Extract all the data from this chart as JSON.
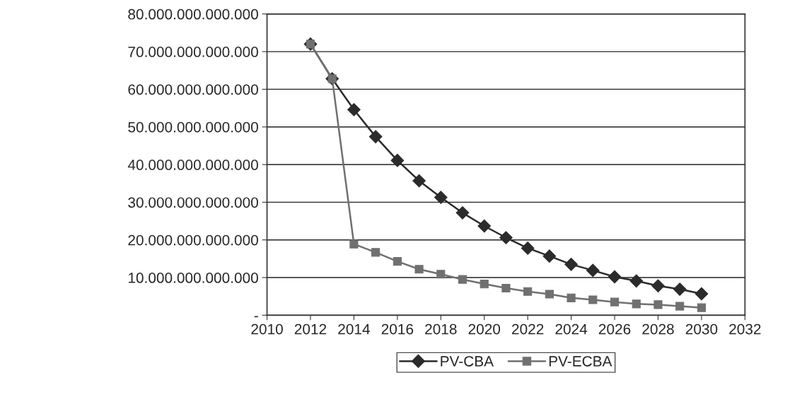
{
  "chart_data": {
    "type": "line",
    "x": [
      2012,
      2013,
      2014,
      2015,
      2016,
      2017,
      2018,
      2019,
      2020,
      2021,
      2022,
      2023,
      2024,
      2025,
      2026,
      2027,
      2028,
      2029,
      2030
    ],
    "series": [
      {
        "name": "PV-CBA",
        "color": "#2b2b2b",
        "marker": "diamond",
        "values": [
          72000000000000,
          62800000000000,
          54600000000000,
          47400000000000,
          41100000000000,
          35700000000000,
          31300000000000,
          27200000000000,
          23700000000000,
          20600000000000,
          17800000000000,
          15700000000000,
          13500000000000,
          11900000000000,
          10200000000000,
          9100000000000,
          7800000000000,
          6900000000000,
          5700000000000
        ]
      },
      {
        "name": "PV-ECBA",
        "color": "#707070",
        "marker": "square",
        "values": [
          72000000000000,
          62800000000000,
          18900000000000,
          16700000000000,
          14300000000000,
          12200000000000,
          10900000000000,
          9500000000000,
          8300000000000,
          7200000000000,
          6300000000000,
          5600000000000,
          4600000000000,
          4100000000000,
          3500000000000,
          3000000000000,
          2800000000000,
          2400000000000,
          2000000000000
        ]
      }
    ],
    "xlim": [
      2010,
      2032
    ],
    "xticks": [
      2010,
      2012,
      2014,
      2016,
      2018,
      2020,
      2022,
      2024,
      2026,
      2028,
      2030,
      2032
    ],
    "ylim": [
      0,
      80000000000000
    ],
    "yticks": [
      {
        "value": 0,
        "label": "-"
      },
      {
        "value": 10000000000000,
        "label": "10.000.000.000.000"
      },
      {
        "value": 20000000000000,
        "label": "20.000.000.000.000"
      },
      {
        "value": 30000000000000,
        "label": "30.000.000.000.000"
      },
      {
        "value": 40000000000000,
        "label": "40.000.000.000.000"
      },
      {
        "value": 50000000000000,
        "label": "50.000.000.000.000"
      },
      {
        "value": 60000000000000,
        "label": "60.000.000.000.000"
      },
      {
        "value": 70000000000000,
        "label": "70.000.000.000.000"
      },
      {
        "value": 80000000000000,
        "label": "80.000.000.000.000"
      }
    ],
    "grid": "y",
    "legend": "bottom",
    "line_style": "solid"
  }
}
